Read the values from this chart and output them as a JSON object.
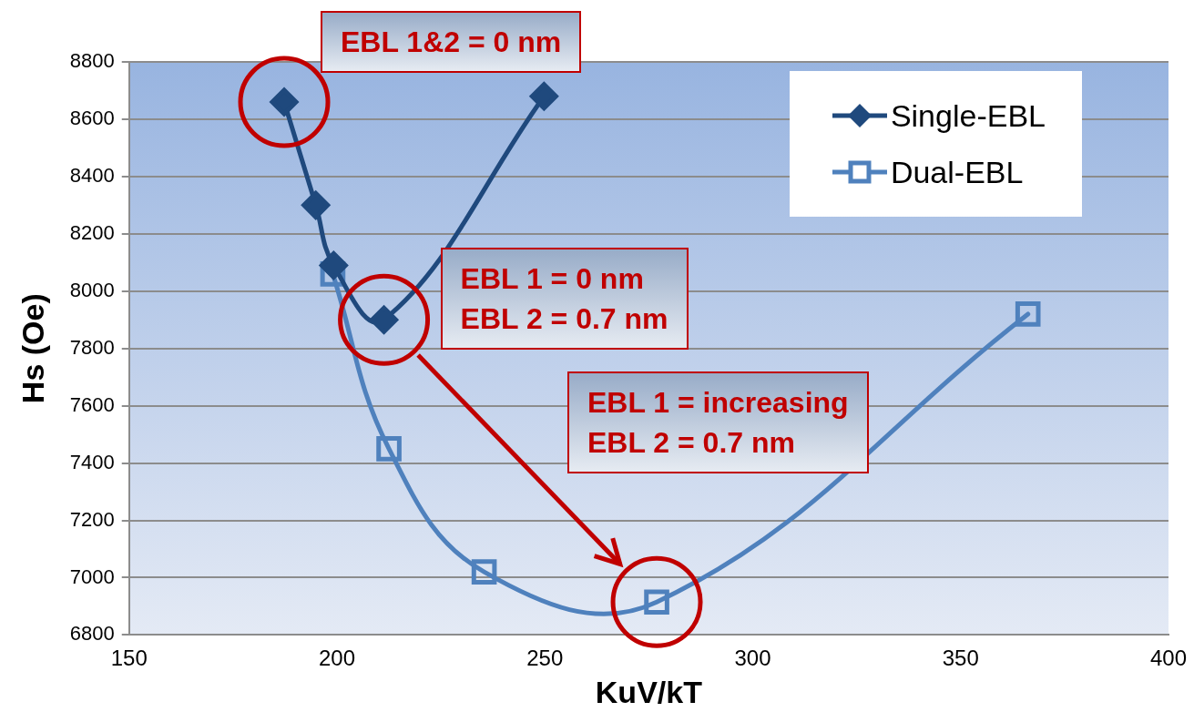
{
  "chart_data": {
    "type": "line",
    "xlabel": "KuV/kT",
    "ylabel": "Hs (Oe)",
    "xlim": [
      150,
      400
    ],
    "xticks": [
      150,
      200,
      250,
      300,
      350,
      400
    ],
    "ylim": [
      6800,
      8800
    ],
    "yticks": [
      6800,
      7000,
      7200,
      7400,
      7600,
      7800,
      8000,
      8200,
      8400,
      8600,
      8800
    ],
    "grid": "y",
    "legend": "top right",
    "line_style": "solid",
    "series": [
      {
        "name": "Single-EBL",
        "color": "#1f497d",
        "marker": "diamond",
        "x": [
          187.3,
          194.9,
          199.2,
          211.3,
          249.8
        ],
        "values": [
          8660,
          8300,
          8090,
          7900,
          8680
        ]
      },
      {
        "name": "Dual-EBL",
        "color": "#4f81bd",
        "marker": "square",
        "x": [
          199,
          212.5,
          235.4,
          276.9,
          366.2
        ],
        "values": [
          8060,
          7450,
          7020,
          6915,
          7920
        ]
      }
    ],
    "annotations": [
      {
        "text": "EBL 1&2 = 0 nm",
        "x": 187.3,
        "y": 8660
      },
      {
        "text": "EBL 1 = 0 nm\nEBL 2 = 0.7 nm",
        "x": 211.3,
        "y": 7900
      },
      "EBL 1 = increasing\nEBL 2 = 0.7 nm"
    ]
  }
}
